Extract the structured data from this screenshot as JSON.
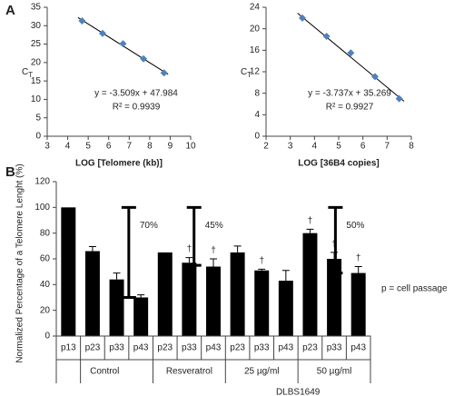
{
  "chart_data": [
    {
      "type": "scatter",
      "panel": "A",
      "xlabel": "LOG [Telomere (kb)]",
      "ylabel": "C",
      "ylabel_sub": "T",
      "x": [
        4.7,
        5.7,
        6.7,
        7.7,
        8.7
      ],
      "values": [
        31.3,
        27.9,
        25.1,
        21.0,
        17.2
      ],
      "color": "#4f81bd",
      "trendline": {
        "x": [
          4.5,
          8.9
        ],
        "values": [
          32.2,
          16.8
        ]
      },
      "equation": "y = -3.509x + 47.984",
      "r2": "R² = 0.9939",
      "xlim": [
        3,
        10
      ],
      "xticks": [
        3,
        4,
        5,
        6,
        7,
        8,
        9,
        10
      ],
      "ylim": [
        0,
        35
      ],
      "yticks": [
        0,
        5,
        10,
        15,
        20,
        25,
        30,
        35
      ]
    },
    {
      "type": "scatter",
      "xlabel": "LOG [36B4 copies]",
      "ylabel": "C",
      "ylabel_sub": "T",
      "x": [
        3.5,
        4.5,
        5.5,
        6.5,
        7.5
      ],
      "values": [
        22.0,
        18.6,
        15.5,
        11.1,
        7.0
      ],
      "color": "#4f81bd",
      "trendline": {
        "x": [
          3.3,
          7.7
        ],
        "values": [
          22.9,
          6.5
        ]
      },
      "equation": "y = -3.737x + 35.269",
      "r2": "R² = 0.9927",
      "xlim": [
        2,
        8
      ],
      "xticks": [
        2,
        3,
        4,
        5,
        6,
        7,
        8
      ],
      "ylim": [
        0,
        24
      ],
      "yticks": [
        0,
        4,
        8,
        12,
        16,
        20,
        24
      ]
    },
    {
      "type": "bar",
      "panel": "B",
      "ylabel": "Normalized Percentage of a Telomere Lenght (%)",
      "categories": [
        "p13",
        "p23",
        "p33",
        "p43",
        "p23",
        "p33",
        "p43",
        "p23",
        "p33",
        "p43",
        "p23",
        "p33",
        "p43"
      ],
      "values": [
        100,
        66,
        44,
        30,
        65,
        57,
        54,
        65,
        51,
        43,
        80,
        60,
        49
      ],
      "errors": [
        0,
        3.5,
        5,
        2,
        0,
        4,
        6,
        5,
        1,
        8,
        3,
        5,
        5
      ],
      "value_annotations": [
        null,
        null,
        null,
        null,
        null,
        "†",
        "†",
        null,
        "†",
        null,
        "†",
        "†",
        "†"
      ],
      "color": "#000000",
      "groups": [
        "Control",
        "Resveratrol",
        "25 µg/ml",
        "50 µg/ml"
      ],
      "group_label": "DLBS1649",
      "brackets": [
        {
          "label": "70%",
          "from": 100,
          "to": 30
        },
        {
          "label": "45%",
          "from": 100,
          "to": 55
        },
        {
          "label": "50%",
          "from": 100,
          "to": 49
        }
      ],
      "note": "p = cell passage",
      "ylim": [
        0,
        120
      ],
      "yticks": [
        0,
        20,
        40,
        60,
        80,
        100,
        120
      ]
    }
  ]
}
